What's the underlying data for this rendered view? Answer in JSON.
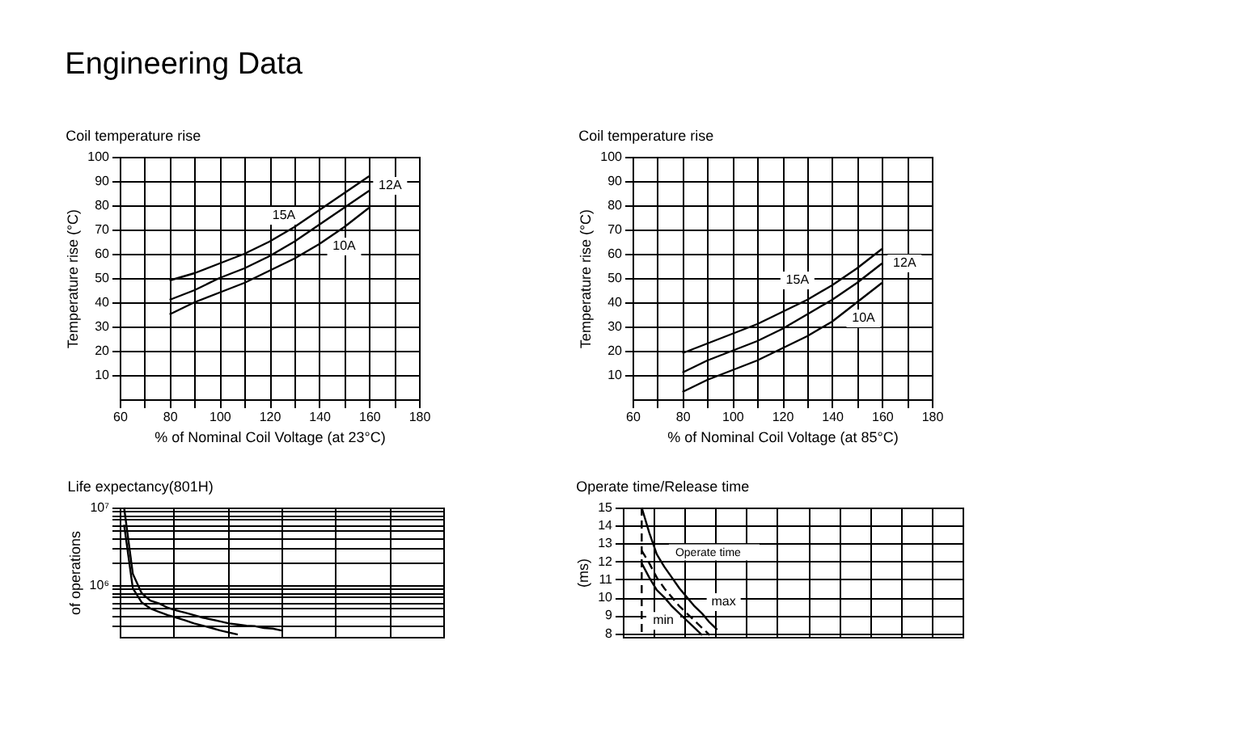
{
  "chart_data": [
    {
      "type": "line",
      "title": "Coil temperature rise",
      "xlabel": "% of Nominal Coil Voltage (at 23°C)",
      "ylabel": "Temperature rise (°C)",
      "annotations": [
        "Engineering Data"
      ],
      "x": [
        80,
        90,
        100,
        110,
        120,
        130,
        140,
        150,
        160
      ],
      "series": [
        {
          "name": "15A",
          "color": "#000000",
          "values": [
            49,
            52,
            56,
            60,
            65,
            71,
            78,
            85,
            92
          ]
        },
        {
          "name": "12A",
          "color": "#000000",
          "values": [
            41,
            45,
            50,
            54,
            59,
            65,
            72,
            79,
            86
          ]
        },
        {
          "name": "10A",
          "color": "#000000",
          "values": [
            35,
            40,
            44,
            48,
            53,
            58,
            64,
            71,
            79
          ]
        }
      ],
      "xlim": [
        60,
        180
      ],
      "xticks": [
        60,
        {
          "value": 70,
          "label": null
        },
        80,
        {
          "value": 90,
          "label": null
        },
        100,
        {
          "value": 110,
          "label": null
        },
        120,
        {
          "value": 130,
          "label": null
        },
        140,
        {
          "value": 150,
          "label": null
        },
        160,
        {
          "value": 170,
          "label": null
        },
        180
      ],
      "ylim": [
        0,
        100
      ],
      "yticks": [
        10,
        20,
        30,
        40,
        50,
        60,
        70,
        80,
        90,
        100
      ],
      "grid": true
    },
    {
      "type": "line",
      "title": "Coil temperature rise",
      "xlabel": "% of Nominal Coil Voltage (at 85°C)",
      "ylabel": "Temperature rise (°C)",
      "x": [
        80,
        90,
        100,
        110,
        120,
        130,
        140,
        150,
        160
      ],
      "series": [
        {
          "name": "15A",
          "color": "#000000",
          "values": [
            19,
            23,
            27,
            31,
            36,
            41,
            47,
            54,
            62
          ]
        },
        {
          "name": "12A",
          "color": "#000000",
          "values": [
            11,
            16,
            20,
            24,
            29,
            35,
            41,
            48,
            56
          ]
        },
        {
          "name": "10A",
          "color": "#000000",
          "values": [
            3,
            8,
            12,
            16,
            21,
            26,
            32,
            40,
            48
          ]
        }
      ],
      "xlim": [
        60,
        180
      ],
      "xticks": [
        60,
        {
          "value": 70,
          "label": null
        },
        80,
        {
          "value": 90,
          "label": null
        },
        100,
        {
          "value": 110,
          "label": null
        },
        120,
        {
          "value": 130,
          "label": null
        },
        140,
        {
          "value": 150,
          "label": null
        },
        160,
        {
          "value": 170,
          "label": null
        },
        180
      ],
      "ylim": [
        0,
        100
      ],
      "yticks": [
        10,
        20,
        30,
        40,
        50,
        60,
        70,
        80,
        90,
        100
      ],
      "grid": true
    },
    {
      "type": "line",
      "title": "Life expectancy(801H)",
      "ylabel": "of operations",
      "categories": [
        null,
        null,
        null,
        null,
        null,
        null,
        null,
        null,
        null,
        null,
        null,
        null,
        null,
        null,
        null,
        null,
        null,
        null,
        null,
        null,
        null,
        null,
        null,
        null,
        null,
        null,
        null,
        null,
        null,
        null,
        null,
        null,
        null,
        null,
        null,
        null,
        null
      ],
      "series": [
        {
          "color": "#000000",
          "values": [
            10000000,
            1400000,
            790000,
            630000,
            580000,
            510000,
            470000,
            440000,
            410000,
            380000,
            360000,
            340000,
            320000,
            310000,
            300000,
            295000,
            280000,
            275000,
            260000,
            null,
            null,
            null,
            null,
            null,
            null,
            null,
            null,
            null,
            null,
            null,
            null,
            null,
            null,
            null,
            null,
            null,
            null
          ]
        },
        {
          "color": "#000000",
          "values": [
            6000000,
            910000,
            600000,
            500000,
            450000,
            410000,
            380000,
            350000,
            320000,
            300000,
            280000,
            260000,
            245000,
            230000,
            null,
            null,
            null,
            null,
            null,
            null,
            null,
            null,
            null,
            null,
            null,
            null,
            null,
            null,
            null,
            null,
            null,
            null,
            null,
            null,
            null,
            null,
            null
          ]
        }
      ],
      "log": true,
      "ylim": [
        215000,
        10000000
      ],
      "yticks": [
        {
          "value": 300000,
          "label": null
        },
        {
          "value": 400000,
          "label": null
        },
        {
          "value": 500000,
          "label": null
        },
        {
          "value": 600000,
          "label": null
        },
        {
          "value": 700000,
          "label": null
        },
        {
          "value": 800000,
          "label": null
        },
        {
          "value": 900000,
          "label": null
        },
        {
          "value": 1000000,
          "label": "10⁶"
        },
        {
          "value": 2000000,
          "label": null
        },
        {
          "value": 3000000,
          "label": null
        },
        {
          "value": 4000000,
          "label": null
        },
        {
          "value": 5000000,
          "label": null
        },
        {
          "value": 6000000,
          "label": null
        },
        {
          "value": 7000000,
          "label": null
        },
        {
          "value": 8000000,
          "label": null
        },
        {
          "value": 9000000,
          "label": null
        },
        {
          "value": 10000000,
          "label": "10⁷"
        }
      ],
      "grid": true,
      "tick_labels": "y"
    },
    {
      "type": "line",
      "title": "Operate time/Release time",
      "ylabel": "(ms)",
      "annotations": [
        "Operate time"
      ],
      "categories": [
        null,
        null,
        null,
        null,
        null,
        null,
        null,
        null,
        null,
        null,
        null,
        null,
        null,
        null,
        null,
        null,
        null,
        null,
        null,
        null,
        null,
        null,
        null,
        null,
        null,
        null,
        null,
        null,
        null,
        null,
        null,
        null,
        null,
        null,
        null,
        null,
        null,
        null,
        null,
        null,
        null,
        null,
        null,
        null,
        null
      ],
      "series": [
        {
          "name": "max",
          "color": "#000000",
          "values": [
            null,
            null,
            15.0,
            13.6,
            12.4,
            11.7,
            11.1,
            10.5,
            10.0,
            9.5,
            9.1,
            8.6,
            8.2,
            null,
            null,
            null,
            null,
            null,
            null,
            null,
            null,
            null,
            null,
            null,
            null,
            null,
            null,
            null,
            null,
            null,
            null,
            null,
            null,
            null,
            null,
            null,
            null,
            null,
            null,
            null,
            null,
            null,
            null,
            null,
            null
          ]
        },
        {
          "color": "#000000",
          "line_style": "dashed",
          "values": [
            null,
            null,
            12.6,
            11.9,
            11.1,
            10.5,
            10.0,
            9.5,
            9.1,
            8.7,
            8.3,
            7.9,
            null,
            null,
            null,
            null,
            null,
            null,
            null,
            null,
            null,
            null,
            null,
            null,
            null,
            null,
            null,
            null,
            null,
            null,
            null,
            null,
            null,
            null,
            null,
            null,
            null,
            null,
            null,
            null,
            null,
            null,
            null,
            null,
            null
          ]
        },
        {
          "name": "min",
          "color": "#000000",
          "values": [
            null,
            null,
            11.9,
            11.1,
            10.4,
            10.0,
            9.5,
            9.1,
            8.7,
            8.3,
            7.9,
            null,
            null,
            null,
            null,
            null,
            null,
            null,
            null,
            null,
            null,
            null,
            null,
            null,
            null,
            null,
            null,
            null,
            null,
            null,
            null,
            null,
            null,
            null,
            null,
            null,
            null,
            null,
            null,
            null,
            null,
            null,
            null,
            null,
            null
          ]
        }
      ],
      "ref_lines": [
        {
          "axis": "x",
          "line_style": "dashed",
          "color": "#000000"
        }
      ],
      "ylim": [
        7.8,
        15
      ],
      "yticks": [
        8,
        9,
        10,
        11,
        12,
        13,
        14,
        15
      ],
      "grid": true,
      "tick_labels": "y"
    }
  ]
}
